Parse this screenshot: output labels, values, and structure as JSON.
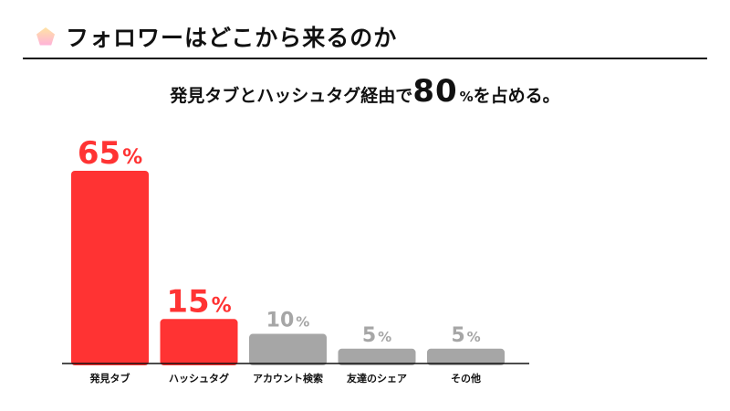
{
  "header": {
    "title": "フォロワーはどこから来るのか",
    "icon": "pentagon-icon"
  },
  "subtitle": {
    "prefix": "発見タブとハッシュタグ経由で",
    "number": "80",
    "unit": "%",
    "suffix": "を占める。"
  },
  "colors": {
    "highlight": "#ff3333",
    "muted": "#a6a6a6",
    "text": "#111111"
  },
  "chart_data": {
    "type": "bar",
    "title": "",
    "xlabel": "",
    "ylabel": "",
    "categories": [
      "発見タブ",
      "ハッシュタグ",
      "アカウント検索",
      "友達のシェア",
      "その他"
    ],
    "values": [
      65,
      15,
      10,
      5,
      5
    ],
    "value_labels": [
      "65",
      "15",
      "10",
      "5",
      "5"
    ],
    "value_unit": "%",
    "highlighted": [
      true,
      true,
      false,
      false,
      false
    ],
    "ylim": [
      0,
      65
    ],
    "grid": false,
    "legend": "none"
  }
}
